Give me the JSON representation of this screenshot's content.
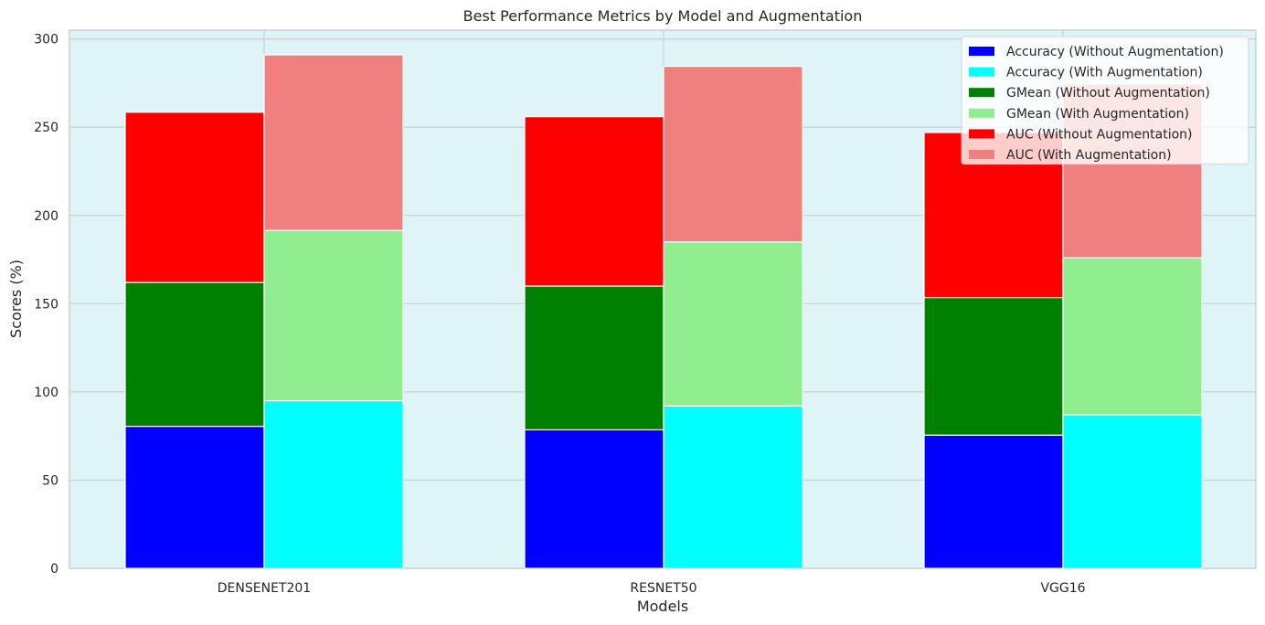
{
  "chart_data": {
    "type": "bar",
    "stacked": true,
    "grouped": true,
    "title": "Best Performance Metrics by Model and Augmentation",
    "xlabel": "Models",
    "ylabel": "Scores (%)",
    "categories": [
      "DENSENET201",
      "RESNET50",
      "VGG16"
    ],
    "ylim": [
      0,
      305
    ],
    "yticks": [
      0,
      50,
      100,
      150,
      200,
      250,
      300
    ],
    "grid": true,
    "background": "#dff4f7",
    "legend_position": "top-right",
    "groups": [
      {
        "name": "Without Augmentation",
        "series": [
          {
            "name": "Accuracy (Without Augmentation)",
            "color": "#0000ff",
            "values": [
              80.5,
              78.5,
              75.5
            ]
          },
          {
            "name": "GMean (Without Augmentation)",
            "color": "#008000",
            "values": [
              81.5,
              81.5,
              78.0
            ]
          },
          {
            "name": "AUC (Without Augmentation)",
            "color": "#ff0000",
            "values": [
              96.5,
              96.0,
              93.5
            ]
          }
        ]
      },
      {
        "name": "With Augmentation",
        "series": [
          {
            "name": "Accuracy (With Augmentation)",
            "color": "#00ffff",
            "values": [
              95.0,
              92.0,
              87.0
            ]
          },
          {
            "name": "GMean (With Augmentation)",
            "color": "#90ee90",
            "values": [
              96.5,
              93.0,
              89.0
            ]
          },
          {
            "name": "AUC (With Augmentation)",
            "color": "#f08080",
            "values": [
              99.5,
              99.5,
              98.5
            ]
          }
        ]
      }
    ],
    "legend_order": [
      "Accuracy (Without Augmentation)",
      "Accuracy (With Augmentation)",
      "GMean (Without Augmentation)",
      "GMean (With Augmentation)",
      "AUC (Without Augmentation)",
      "AUC (With Augmentation)"
    ]
  }
}
